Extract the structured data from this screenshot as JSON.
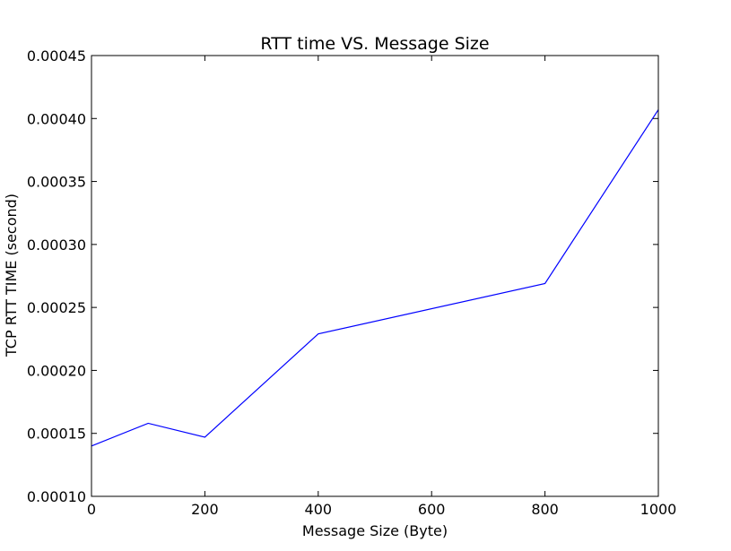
{
  "chart_data": {
    "type": "line",
    "title": "RTT time VS. Message Size",
    "xlabel": "Message Size (Byte)",
    "ylabel": "TCP RTT TIME (second)",
    "xlim": [
      0,
      1000
    ],
    "ylim": [
      0.0001,
      0.00045
    ],
    "x_ticks": [
      0,
      200,
      400,
      600,
      800,
      1000
    ],
    "y_ticks": [
      0.0001,
      0.00015,
      0.0002,
      0.00025,
      0.0003,
      0.00035,
      0.0004,
      0.00045
    ],
    "x_tick_labels": [
      "0",
      "200",
      "400",
      "600",
      "800",
      "1000"
    ],
    "y_tick_labels": [
      "0.00010",
      "0.00015",
      "0.00020",
      "0.00025",
      "0.00030",
      "0.00035",
      "0.00040",
      "0.00045"
    ],
    "grid": false,
    "legend": "none",
    "series": [
      {
        "color": "#0000ff",
        "x": [
          0,
          100,
          200,
          400,
          800,
          1000
        ],
        "y": [
          0.00014,
          0.000158,
          0.000147,
          0.000229,
          0.000269,
          0.000407
        ]
      }
    ]
  }
}
